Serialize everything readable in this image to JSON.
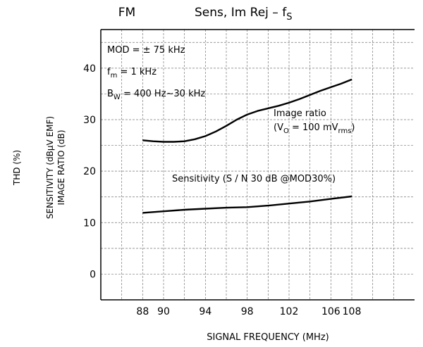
{
  "chart_data": {
    "type": "line",
    "band": "FM",
    "title": "Sens, Im Rej  –  f",
    "title_subscript": "S",
    "xlabel": "SIGNAL FREQUENCY   (MHz)",
    "ylabel_outer": "THD   (%)",
    "ylabel_mid": "SENSITIVITY   (dBμV EMF)",
    "ylabel_inner": "IMAGE RATIO   (dB)",
    "xlim": [
      84,
      114
    ],
    "ylim": [
      -5,
      47.5
    ],
    "x_ticks": [
      88,
      90,
      94,
      98,
      102,
      106,
      108
    ],
    "x_tick_labels": [
      "88",
      "90",
      "94",
      "98",
      "102",
      "106",
      "108"
    ],
    "y_ticks": [
      0,
      10,
      20,
      30,
      40
    ],
    "y_tick_labels": [
      "0",
      "10",
      "20",
      "30",
      "40"
    ],
    "grid": true,
    "conditions": {
      "mod_label": "MOD = ",
      "mod_value": "± 75 kHz",
      "fm_label": "f",
      "fm_sub": "m",
      "fm_value": " = 1 kHz",
      "bw_label": "B",
      "bw_sub": "W",
      "bw_value": " = 400 Hz∼30 kHz"
    },
    "series": [
      {
        "name": "Image ratio",
        "annotation": "(V",
        "annotation_sub": "O",
        "annotation_mid": " = 100 mV",
        "annotation_sub2": "rms",
        "annotation_end": ")",
        "x": [
          88,
          89,
          90,
          91,
          92,
          93,
          94,
          95,
          96,
          97,
          98,
          99,
          100,
          101,
          102,
          103,
          104,
          105,
          106,
          107,
          108
        ],
        "values": [
          26.0,
          25.8,
          25.7,
          25.7,
          25.8,
          26.2,
          26.8,
          27.7,
          28.8,
          30.0,
          31.0,
          31.7,
          32.2,
          32.7,
          33.3,
          34.0,
          34.8,
          35.6,
          36.3,
          37.0,
          37.8
        ]
      },
      {
        "name": "Sensitivity (S / N  30 dB @MOD30%)",
        "x": [
          88,
          90,
          92,
          94,
          96,
          98,
          100,
          102,
          104,
          106,
          108
        ],
        "values": [
          11.9,
          12.2,
          12.5,
          12.7,
          12.9,
          13.0,
          13.3,
          13.7,
          14.1,
          14.6,
          15.1
        ]
      }
    ]
  }
}
